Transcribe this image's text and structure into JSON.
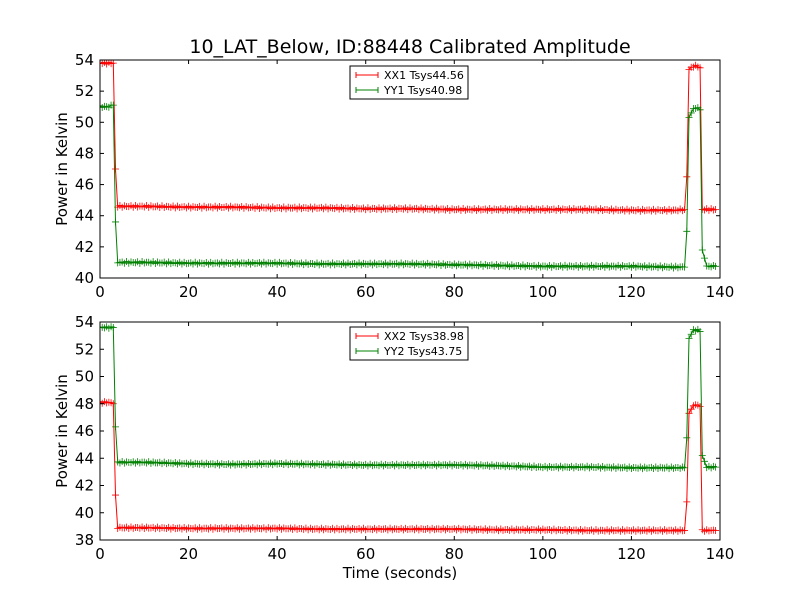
{
  "figure": {
    "title": "10_LAT_Below, ID:88448 Calibrated Amplitude"
  },
  "chart_data": [
    {
      "type": "line",
      "title": "10_LAT_Below, ID:88448 Calibrated Amplitude",
      "xlabel": "",
      "ylabel": "Power in Kelvin",
      "xlim": [
        0,
        140
      ],
      "ylim": [
        40,
        54
      ],
      "xticks": [
        0,
        20,
        40,
        60,
        80,
        100,
        120,
        140
      ],
      "yticks": [
        40,
        42,
        44,
        46,
        48,
        50,
        52,
        54
      ],
      "grid": false,
      "legend_position": "top-center",
      "series": [
        {
          "name": "XX1 Tsys44.56",
          "color": "#ff0000",
          "marker": "plus",
          "x": [
            0,
            1,
            2,
            3,
            3.5,
            4,
            4.5,
            5,
            10,
            20,
            30,
            40,
            50,
            60,
            70,
            80,
            90,
            100,
            110,
            120,
            130,
            132,
            132.5,
            133,
            134,
            135,
            135.5,
            136,
            137,
            138,
            139
          ],
          "values": [
            53.8,
            53.8,
            53.8,
            53.8,
            47.0,
            44.6,
            44.6,
            44.6,
            44.6,
            44.55,
            44.55,
            44.5,
            44.5,
            44.45,
            44.45,
            44.4,
            44.4,
            44.4,
            44.4,
            44.35,
            44.35,
            44.4,
            46.5,
            53.4,
            53.6,
            53.6,
            53.5,
            44.4,
            44.4,
            44.4,
            44.4
          ]
        },
        {
          "name": "YY1 Tsys40.98",
          "color": "#008000",
          "marker": "plus",
          "x": [
            0,
            1,
            2,
            3,
            3.5,
            4,
            4.5,
            5,
            10,
            20,
            30,
            40,
            50,
            60,
            70,
            80,
            90,
            100,
            110,
            120,
            130,
            132,
            132.5,
            133,
            134,
            135,
            135.5,
            136,
            137,
            138,
            139
          ],
          "values": [
            51.0,
            51.0,
            51.0,
            51.1,
            43.6,
            41.0,
            41.0,
            41.0,
            41.0,
            40.95,
            40.95,
            40.95,
            40.9,
            40.9,
            40.9,
            40.85,
            40.8,
            40.75,
            40.75,
            40.75,
            40.7,
            40.7,
            43.0,
            50.3,
            50.9,
            50.9,
            50.8,
            41.8,
            40.75,
            40.75,
            40.75
          ]
        }
      ]
    },
    {
      "type": "line",
      "title": "",
      "xlabel": "Time (seconds)",
      "ylabel": "Power in Kelvin",
      "xlim": [
        0,
        140
      ],
      "ylim": [
        38,
        54
      ],
      "xticks": [
        0,
        20,
        40,
        60,
        80,
        100,
        120,
        140
      ],
      "yticks": [
        38,
        40,
        42,
        44,
        46,
        48,
        50,
        52,
        54
      ],
      "grid": false,
      "legend_position": "top-center",
      "series": [
        {
          "name": "XX2 Tsys38.98",
          "color": "#ff0000",
          "marker": "plus",
          "x": [
            0,
            1,
            2,
            3,
            3.5,
            4,
            4.5,
            5,
            10,
            20,
            30,
            40,
            50,
            60,
            70,
            80,
            90,
            100,
            110,
            120,
            130,
            132,
            132.5,
            133,
            134,
            135,
            135.5,
            136,
            137,
            138,
            139
          ],
          "values": [
            48.1,
            48.1,
            48.1,
            48.0,
            41.3,
            38.9,
            38.9,
            38.9,
            38.9,
            38.85,
            38.85,
            38.85,
            38.8,
            38.8,
            38.8,
            38.8,
            38.75,
            38.75,
            38.7,
            38.7,
            38.7,
            38.7,
            40.8,
            47.3,
            47.9,
            47.9,
            47.8,
            38.7,
            38.7,
            38.7,
            38.7
          ]
        },
        {
          "name": "YY2 Tsys43.75",
          "color": "#008000",
          "marker": "plus",
          "x": [
            0,
            1,
            2,
            3,
            3.5,
            4,
            4.5,
            5,
            10,
            20,
            30,
            40,
            50,
            60,
            70,
            80,
            90,
            100,
            110,
            120,
            130,
            132,
            132.5,
            133,
            134,
            135,
            135.5,
            136,
            137,
            138,
            139
          ],
          "values": [
            53.6,
            53.6,
            53.6,
            53.6,
            46.3,
            43.7,
            43.7,
            43.7,
            43.7,
            43.6,
            43.55,
            43.6,
            43.55,
            43.5,
            43.5,
            43.5,
            43.45,
            43.35,
            43.35,
            43.3,
            43.3,
            43.3,
            45.5,
            52.8,
            53.4,
            53.4,
            53.3,
            44.2,
            43.35,
            43.35,
            43.35
          ]
        }
      ]
    }
  ]
}
